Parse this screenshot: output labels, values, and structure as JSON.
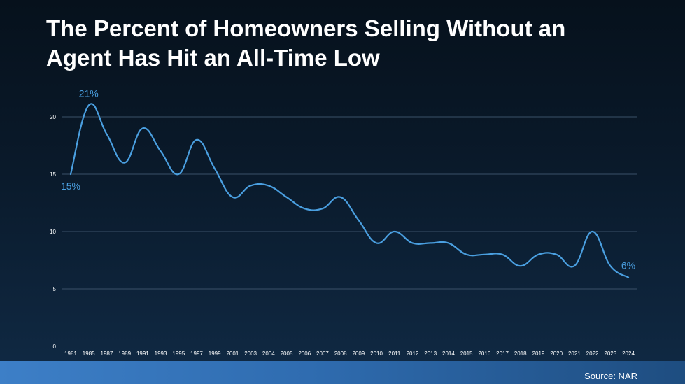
{
  "title_line1": "The Percent of Homeowners Selling Without an",
  "title_line2": "Agent Has Hit an All-Time Low",
  "source": "Source: NAR",
  "colors": {
    "line": "#4a9fe0",
    "grid": "#3a5068",
    "text": "#ffffff"
  },
  "chart_data": {
    "type": "line",
    "title": "The Percent of Homeowners Selling Without an Agent Has Hit an All-Time Low",
    "xlabel": "",
    "ylabel": "",
    "categories": [
      "1981",
      "1985",
      "1987",
      "1989",
      "1991",
      "1993",
      "1995",
      "1997",
      "1999",
      "2001",
      "2003",
      "2004",
      "2005",
      "2006",
      "2007",
      "2008",
      "2009",
      "2010",
      "2011",
      "2012",
      "2013",
      "2014",
      "2015",
      "2016",
      "2017",
      "2018",
      "2019",
      "2020",
      "2021",
      "2022",
      "2023",
      "2024"
    ],
    "series": [
      {
        "values": [
          15,
          21,
          18.5,
          16,
          19,
          17,
          15,
          18,
          15.5,
          13,
          14,
          14,
          13,
          12,
          12,
          13,
          11,
          9,
          10,
          9,
          9,
          9,
          8,
          8,
          8,
          7,
          8,
          8,
          7,
          10,
          7,
          6
        ]
      }
    ],
    "ylim": [
      0,
      20
    ],
    "yticks": [
      0,
      5,
      10,
      15,
      20
    ],
    "grid": true,
    "annotations": [
      {
        "index": 0,
        "text": "15%",
        "position": "below"
      },
      {
        "index": 1,
        "text": "21%",
        "position": "above"
      },
      {
        "index": 31,
        "text": "6%",
        "position": "above"
      }
    ]
  }
}
